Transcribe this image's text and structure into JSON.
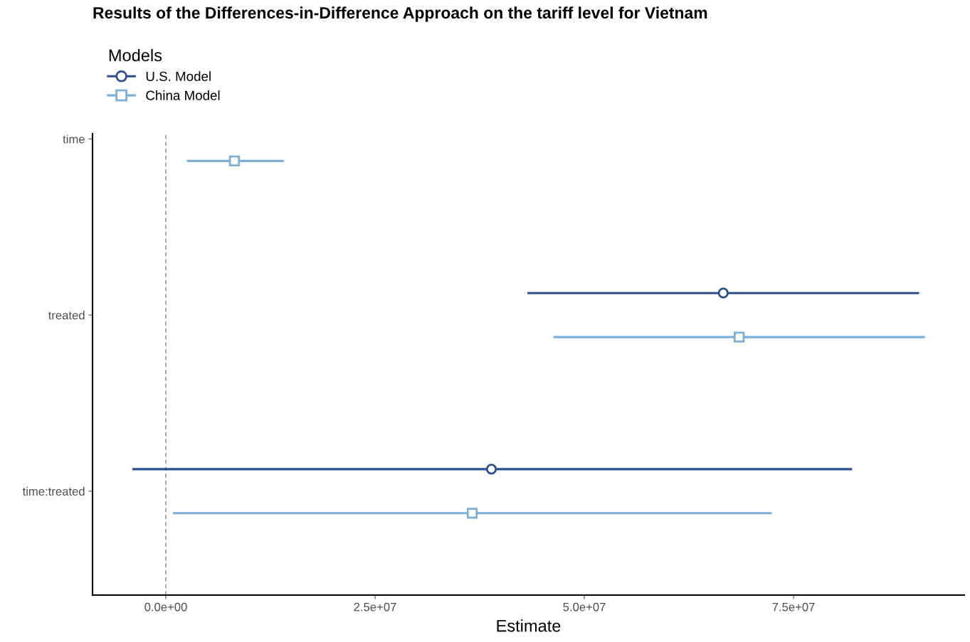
{
  "chart_data": {
    "type": "scatter",
    "orientation": "horizontal",
    "title": "Results of the Differences-in-Difference Approach on the tariff level for Vietnam",
    "xlabel": "Estimate",
    "legend_title": "Models",
    "categories": [
      "time",
      "treated",
      "time:treated"
    ],
    "series": [
      {
        "name": "U.S. Model",
        "color": "#2b4f8f",
        "marker": "circle",
        "values": [
          null,
          66600000,
          38900000
        ],
        "errors": [
          null,
          [
            43200000,
            90000000
          ],
          [
            -4000000,
            82000000
          ]
        ]
      },
      {
        "name": "China Model",
        "color": "#7bafd8",
        "marker": "square",
        "values": [
          8200000,
          68500000,
          36600000
        ],
        "errors": [
          [
            2500000,
            14100000
          ],
          [
            46300000,
            90700000
          ],
          [
            850000,
            72400000
          ]
        ]
      }
    ],
    "xlim": [
      -8760000,
      95400000
    ],
    "xticks": [
      {
        "value": 0,
        "label": "0.0e+00"
      },
      {
        "value": 25000000,
        "label": "2.5e+07"
      },
      {
        "value": 50000000,
        "label": "5.0e+07"
      },
      {
        "value": 75000000,
        "label": "7.5e+07"
      }
    ],
    "ref_lines": [
      {
        "axis": "x",
        "value": 0,
        "color": "#808080",
        "line_style": "dashed"
      }
    ],
    "grid": false,
    "legend": "top left"
  }
}
